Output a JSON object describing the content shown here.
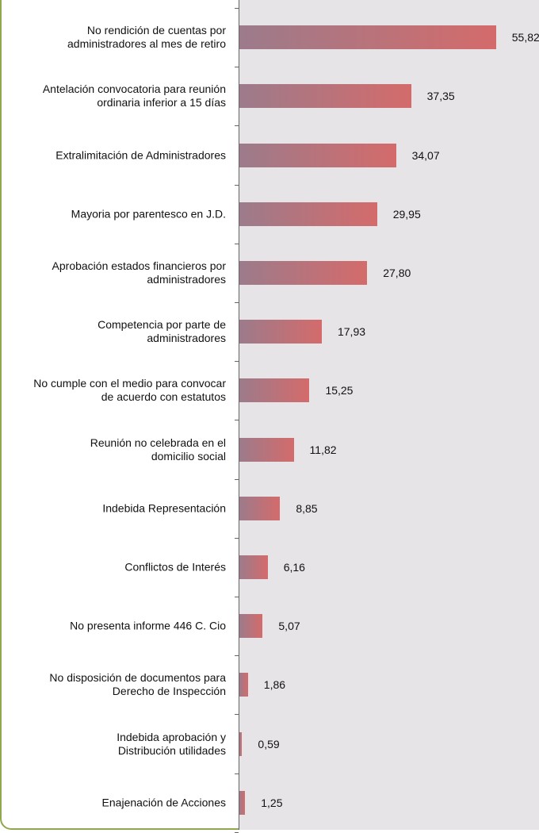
{
  "chart_data": {
    "type": "bar",
    "orientation": "horizontal",
    "categories": [
      "No rendición de cuentas por\nadministradores al mes de retiro",
      "Antelación convocatoria para reunión\nordinaria inferior a 15 días",
      "Extralimitación de Administradores",
      "Mayoria por parentesco en J.D.",
      "Aprobación estados financieros por\nadministradores",
      "Competencia por parte de\nadministradores",
      "No cumple con el medio para convocar\nde acuerdo con estatutos",
      "Reunión no celebrada en el\ndomicilio social",
      "Indebida Representación",
      "Conflictos de Interés",
      "No presenta informe 446 C. Cio",
      "No disposición de documentos para\nDerecho de Inspección",
      "Indebida aprobación y\nDistribución utilidades",
      "Enajenación de Acciones"
    ],
    "values": [
      55.82,
      37.35,
      34.07,
      29.95,
      27.8,
      17.93,
      15.25,
      11.82,
      8.85,
      6.16,
      5.07,
      1.86,
      0.59,
      1.25
    ],
    "value_labels": [
      "55,82",
      "37,35",
      "34,07",
      "29,95",
      "27,80",
      "17,93",
      "15,25",
      "11,82",
      "8,85",
      "6,16",
      "5,07",
      "1,86",
      "0,59",
      "1,25"
    ],
    "color": [
      "#9c7b8b",
      "#d46b6b"
    ]
  }
}
